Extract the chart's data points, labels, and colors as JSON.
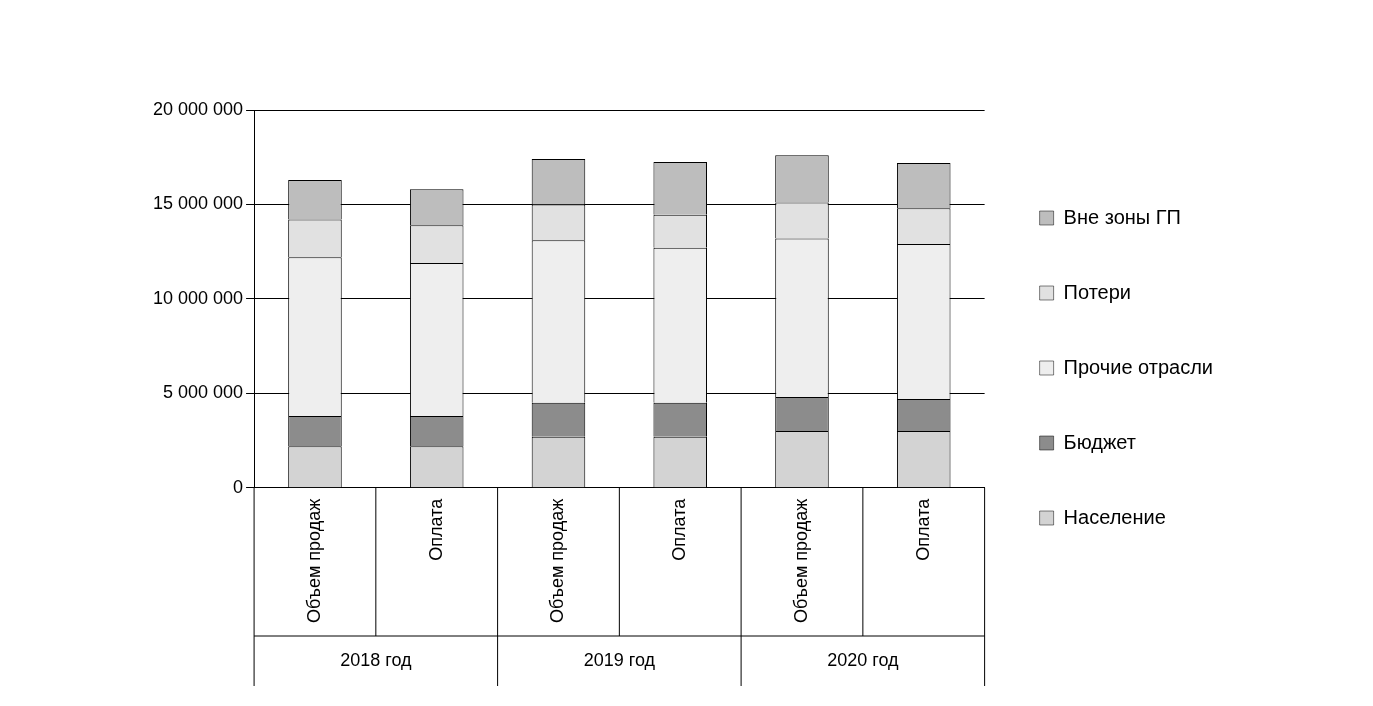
{
  "chart_data": {
    "type": "bar",
    "stacked": true,
    "categories": [
      "Объем продаж",
      "Оплата",
      "Объем продаж",
      "Оплата",
      "Объем продаж",
      "Оплата"
    ],
    "series": [
      {
        "name": "Население",
        "color": "#d3d3d3",
        "values": [
          2200000,
          2200000,
          2700000,
          2700000,
          3000000,
          3000000
        ]
      },
      {
        "name": "Бюджет",
        "color": "#8c8c8c",
        "values": [
          1600000,
          1600000,
          1800000,
          1800000,
          1800000,
          1700000
        ]
      },
      {
        "name": "Прочие отрасли",
        "color": "#eeeeee",
        "values": [
          8400000,
          8100000,
          8600000,
          8200000,
          8400000,
          8200000
        ]
      },
      {
        "name": "Потери",
        "color": "#e1e1e1",
        "values": [
          2000000,
          2000000,
          1900000,
          1750000,
          1900000,
          1900000
        ]
      },
      {
        "name": "Вне зоны ГП",
        "color": "#bdbdbd",
        "values": [
          2100000,
          1900000,
          2400000,
          2800000,
          2500000,
          2400000
        ]
      }
    ],
    "ylim": [
      0,
      20000000
    ],
    "yticks": [
      {
        "value": 0,
        "label": "0"
      },
      {
        "value": 5000000,
        "label": "5 000 000"
      },
      {
        "value": 10000000,
        "label": "10 000 000"
      },
      {
        "value": 15000000,
        "label": "15 000 000"
      },
      {
        "value": 20000000,
        "label": "20 000 000"
      }
    ],
    "grid": "y",
    "legend": "right",
    "annotations": [
      "2018 год",
      "2019 год",
      "2020 год"
    ]
  }
}
